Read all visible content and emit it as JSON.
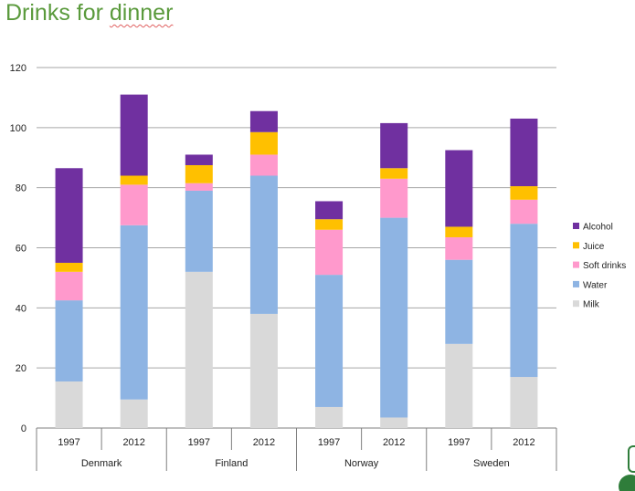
{
  "slide": {
    "title_main": "Drinks for ",
    "title_underlined": "dinner"
  },
  "colors": {
    "Milk": "#d9d9d9",
    "Water": "#8eb4e3",
    "Soft drinks": "#ff99cc",
    "Juice": "#ffc000",
    "Alcohol": "#7030a0",
    "gridline": "#a6a6a6",
    "axis": "#7f7f7f"
  },
  "chart_data": {
    "type": "bar",
    "stacked": true,
    "title": "",
    "xlabel": "",
    "ylabel": "",
    "ylim": [
      0,
      120
    ],
    "yticks": [
      0,
      20,
      40,
      60,
      80,
      100,
      120
    ],
    "grid": true,
    "legend_position": "right",
    "groups": [
      {
        "name": "Denmark",
        "categories": [
          "1997",
          "2012"
        ]
      },
      {
        "name": "Finland",
        "categories": [
          "1997",
          "2012"
        ]
      },
      {
        "name": "Norway",
        "categories": [
          "1997",
          "2012"
        ]
      },
      {
        "name": "Sweden",
        "categories": [
          "1997",
          "2012"
        ]
      }
    ],
    "categories": [
      "Denmark 1997",
      "Denmark 2012",
      "Finland 1997",
      "Finland 2012",
      "Norway 1997",
      "Norway 2012",
      "Sweden 1997",
      "Sweden 2012"
    ],
    "series": [
      {
        "name": "Milk",
        "values": [
          15.5,
          9.5,
          52,
          38,
          7,
          3.5,
          28,
          17
        ]
      },
      {
        "name": "Water",
        "values": [
          27,
          58,
          27,
          46,
          44,
          66.5,
          28,
          51
        ]
      },
      {
        "name": "Soft drinks",
        "values": [
          9.5,
          13.5,
          2.5,
          7,
          15,
          13,
          7.5,
          8
        ]
      },
      {
        "name": "Juice",
        "values": [
          3,
          3,
          6,
          7.5,
          3.5,
          3.5,
          3.5,
          4.5
        ]
      },
      {
        "name": "Alcohol",
        "values": [
          31.5,
          27,
          3.5,
          7,
          6,
          15,
          25.5,
          22.5
        ]
      }
    ],
    "legend_order": [
      "Alcohol",
      "Juice",
      "Soft drinks",
      "Water",
      "Milk"
    ]
  }
}
